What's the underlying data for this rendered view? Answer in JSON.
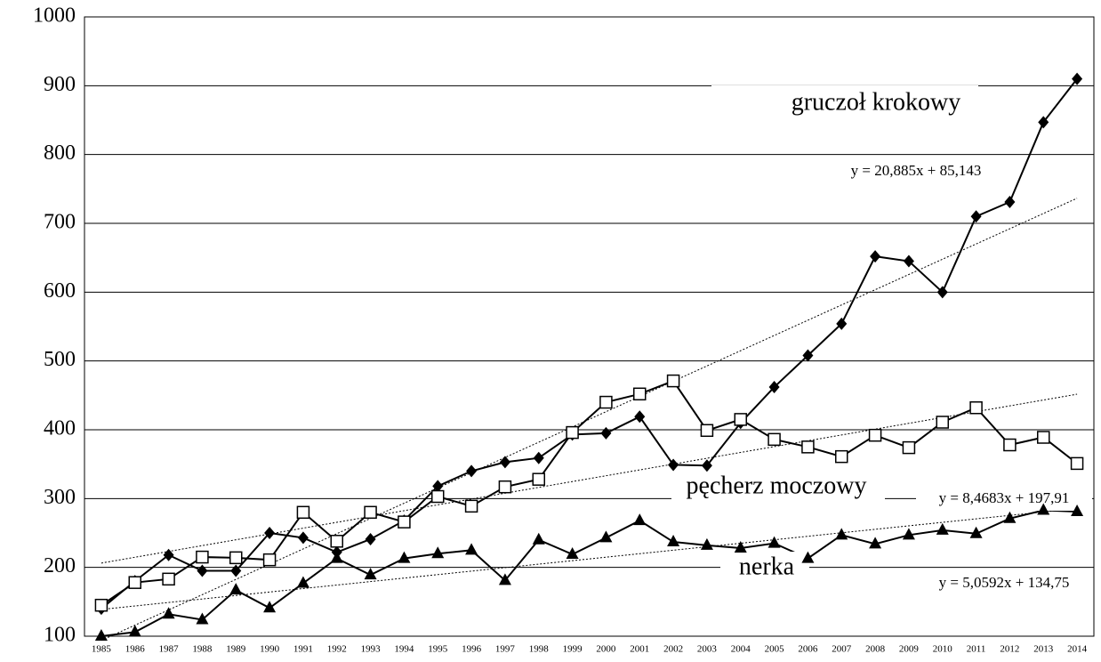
{
  "chart_data": {
    "type": "line",
    "categories": [
      "1985",
      "1986",
      "1987",
      "1988",
      "1989",
      "1990",
      "1991",
      "1992",
      "1993",
      "1994",
      "1995",
      "1996",
      "1997",
      "1998",
      "1999",
      "2000",
      "2001",
      "2002",
      "2003",
      "2004",
      "2005",
      "2006",
      "2007",
      "2008",
      "2009",
      "2010",
      "2011",
      "2012",
      "2013",
      "2014"
    ],
    "series": [
      {
        "name": "gruczoł krokowy",
        "color": "#000000",
        "marker": "diamond",
        "trendline": true,
        "values": [
          140,
          180,
          218,
          195,
          195,
          250,
          243,
          222,
          241,
          268,
          318,
          340,
          353,
          359,
          393,
          395,
          419,
          349,
          348,
          410,
          462,
          508,
          554,
          652,
          645,
          600,
          710,
          731,
          847,
          910
        ]
      },
      {
        "name": "pęcherz moczowy",
        "color": "#000000",
        "marker": "square",
        "trendline": true,
        "values": [
          145,
          178,
          183,
          215,
          214,
          211,
          280,
          238,
          280,
          266,
          303,
          289,
          317,
          328,
          396,
          440,
          452,
          471,
          399,
          415,
          386,
          375,
          361,
          392,
          374,
          411,
          432,
          378,
          389,
          351
        ]
      },
      {
        "name": "nerka",
        "color": "#000000",
        "marker": "triangle",
        "trendline": true,
        "values": [
          100,
          106,
          132,
          124,
          167,
          141,
          177,
          213,
          189,
          213,
          220,
          225,
          181,
          240,
          219,
          243,
          268,
          237,
          232,
          228,
          235,
          213,
          247,
          234,
          247,
          254,
          249,
          271,
          283,
          281
        ]
      }
    ],
    "annotations": [
      "y = 20,885x + 85,143",
      "y = 8,4683x + 197,91",
      "y = 5,0592x + 134,75"
    ],
    "ylim": [
      100,
      1000
    ],
    "yticks": [
      100,
      200,
      300,
      400,
      500,
      600,
      700,
      800,
      900,
      1000
    ],
    "grid": true
  }
}
